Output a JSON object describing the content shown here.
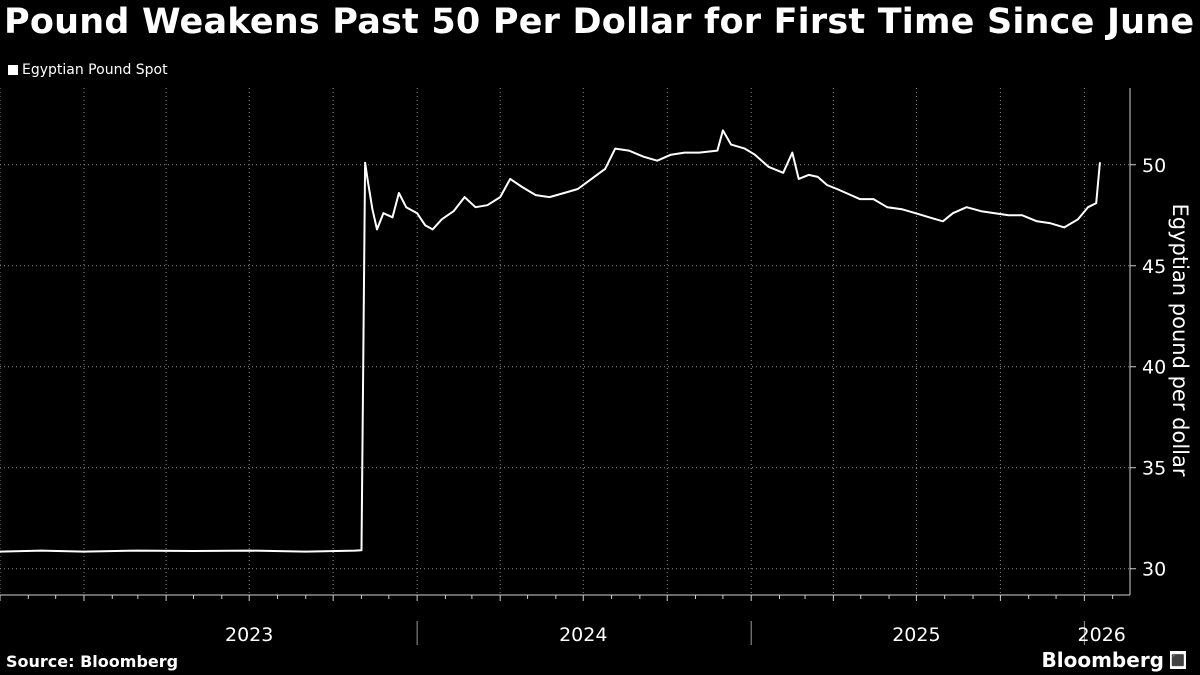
{
  "title": "Pound Weakens Past 50 Per Dollar for First Time Since June",
  "legend": {
    "label": "Egyptian Pound Spot",
    "color": "#ffffff"
  },
  "footer": {
    "source": "Source: Bloomberg",
    "brand": "Bloomberg",
    "brand_mark": "⬛"
  },
  "chart_data": {
    "type": "line",
    "title": "Pound Weakens Past 50 Per Dollar for First Time Since June",
    "ylabel": "Egyptian pound per dollar",
    "xlabel": "",
    "y_ticks": [
      30,
      35,
      40,
      45,
      50
    ],
    "ylim": [
      28.7,
      53.8
    ],
    "xlim": [
      "2022-10-01",
      "2026-02-20"
    ],
    "x_year_labels": [
      {
        "label": "2023",
        "date": "2023-07-01"
      },
      {
        "label": "2024",
        "date": "2024-07-01"
      },
      {
        "label": "2025",
        "date": "2025-07-01"
      },
      {
        "label": "2026",
        "date": "2026-01-20"
      }
    ],
    "x_year_separators": [
      "2024-01-01",
      "2025-01-01",
      "2026-01-01"
    ],
    "grid": true,
    "legend_position": "top-left",
    "series": [
      {
        "name": "Egyptian Pound Spot",
        "color": "#ffffff",
        "points": [
          [
            "2022-10-01",
            30.85
          ],
          [
            "2022-11-15",
            30.9
          ],
          [
            "2023-01-01",
            30.85
          ],
          [
            "2023-03-01",
            30.9
          ],
          [
            "2023-05-01",
            30.88
          ],
          [
            "2023-07-01",
            30.9
          ],
          [
            "2023-09-01",
            30.85
          ],
          [
            "2023-10-25",
            30.9
          ],
          [
            "2023-11-01",
            30.92
          ],
          [
            "2023-11-05",
            50.1
          ],
          [
            "2023-11-08",
            49.2
          ],
          [
            "2023-11-13",
            47.8
          ],
          [
            "2023-11-18",
            46.8
          ],
          [
            "2023-11-25",
            47.6
          ],
          [
            "2023-12-05",
            47.4
          ],
          [
            "2023-12-12",
            48.6
          ],
          [
            "2023-12-20",
            47.9
          ],
          [
            "2024-01-01",
            47.6
          ],
          [
            "2024-01-10",
            47.0
          ],
          [
            "2024-01-18",
            46.8
          ],
          [
            "2024-01-28",
            47.3
          ],
          [
            "2024-02-10",
            47.7
          ],
          [
            "2024-02-22",
            48.4
          ],
          [
            "2024-03-05",
            47.9
          ],
          [
            "2024-03-18",
            48.0
          ],
          [
            "2024-04-01",
            48.4
          ],
          [
            "2024-04-12",
            49.3
          ],
          [
            "2024-04-25",
            48.9
          ],
          [
            "2024-05-10",
            48.5
          ],
          [
            "2024-05-25",
            48.4
          ],
          [
            "2024-06-10",
            48.6
          ],
          [
            "2024-06-25",
            48.8
          ],
          [
            "2024-07-10",
            49.3
          ],
          [
            "2024-07-25",
            49.8
          ],
          [
            "2024-08-05",
            50.8
          ],
          [
            "2024-08-20",
            50.7
          ],
          [
            "2024-09-05",
            50.4
          ],
          [
            "2024-09-20",
            50.2
          ],
          [
            "2024-10-05",
            50.5
          ],
          [
            "2024-10-20",
            50.6
          ],
          [
            "2024-11-05",
            50.6
          ],
          [
            "2024-11-25",
            50.7
          ],
          [
            "2024-12-01",
            51.7
          ],
          [
            "2024-12-10",
            51.0
          ],
          [
            "2024-12-25",
            50.8
          ],
          [
            "2025-01-05",
            50.5
          ],
          [
            "2025-01-20",
            49.9
          ],
          [
            "2025-02-05",
            49.6
          ],
          [
            "2025-02-15",
            50.6
          ],
          [
            "2025-02-22",
            49.3
          ],
          [
            "2025-03-05",
            49.5
          ],
          [
            "2025-03-15",
            49.4
          ],
          [
            "2025-03-25",
            49.0
          ],
          [
            "2025-04-05",
            48.8
          ],
          [
            "2025-04-15",
            48.6
          ],
          [
            "2025-04-30",
            48.3
          ],
          [
            "2025-05-15",
            48.3
          ],
          [
            "2025-05-30",
            47.9
          ],
          [
            "2025-06-15",
            47.8
          ],
          [
            "2025-06-30",
            47.6
          ],
          [
            "2025-07-15",
            47.4
          ],
          [
            "2025-07-30",
            47.2
          ],
          [
            "2025-08-10",
            47.6
          ],
          [
            "2025-08-25",
            47.9
          ],
          [
            "2025-09-10",
            47.7
          ],
          [
            "2025-09-25",
            47.6
          ],
          [
            "2025-10-10",
            47.5
          ],
          [
            "2025-10-25",
            47.5
          ],
          [
            "2025-11-10",
            47.2
          ],
          [
            "2025-11-25",
            47.1
          ],
          [
            "2025-12-10",
            46.9
          ],
          [
            "2025-12-25",
            47.3
          ],
          [
            "2026-01-05",
            47.9
          ],
          [
            "2026-01-14",
            48.1
          ],
          [
            "2026-01-18",
            50.1
          ]
        ]
      }
    ]
  }
}
